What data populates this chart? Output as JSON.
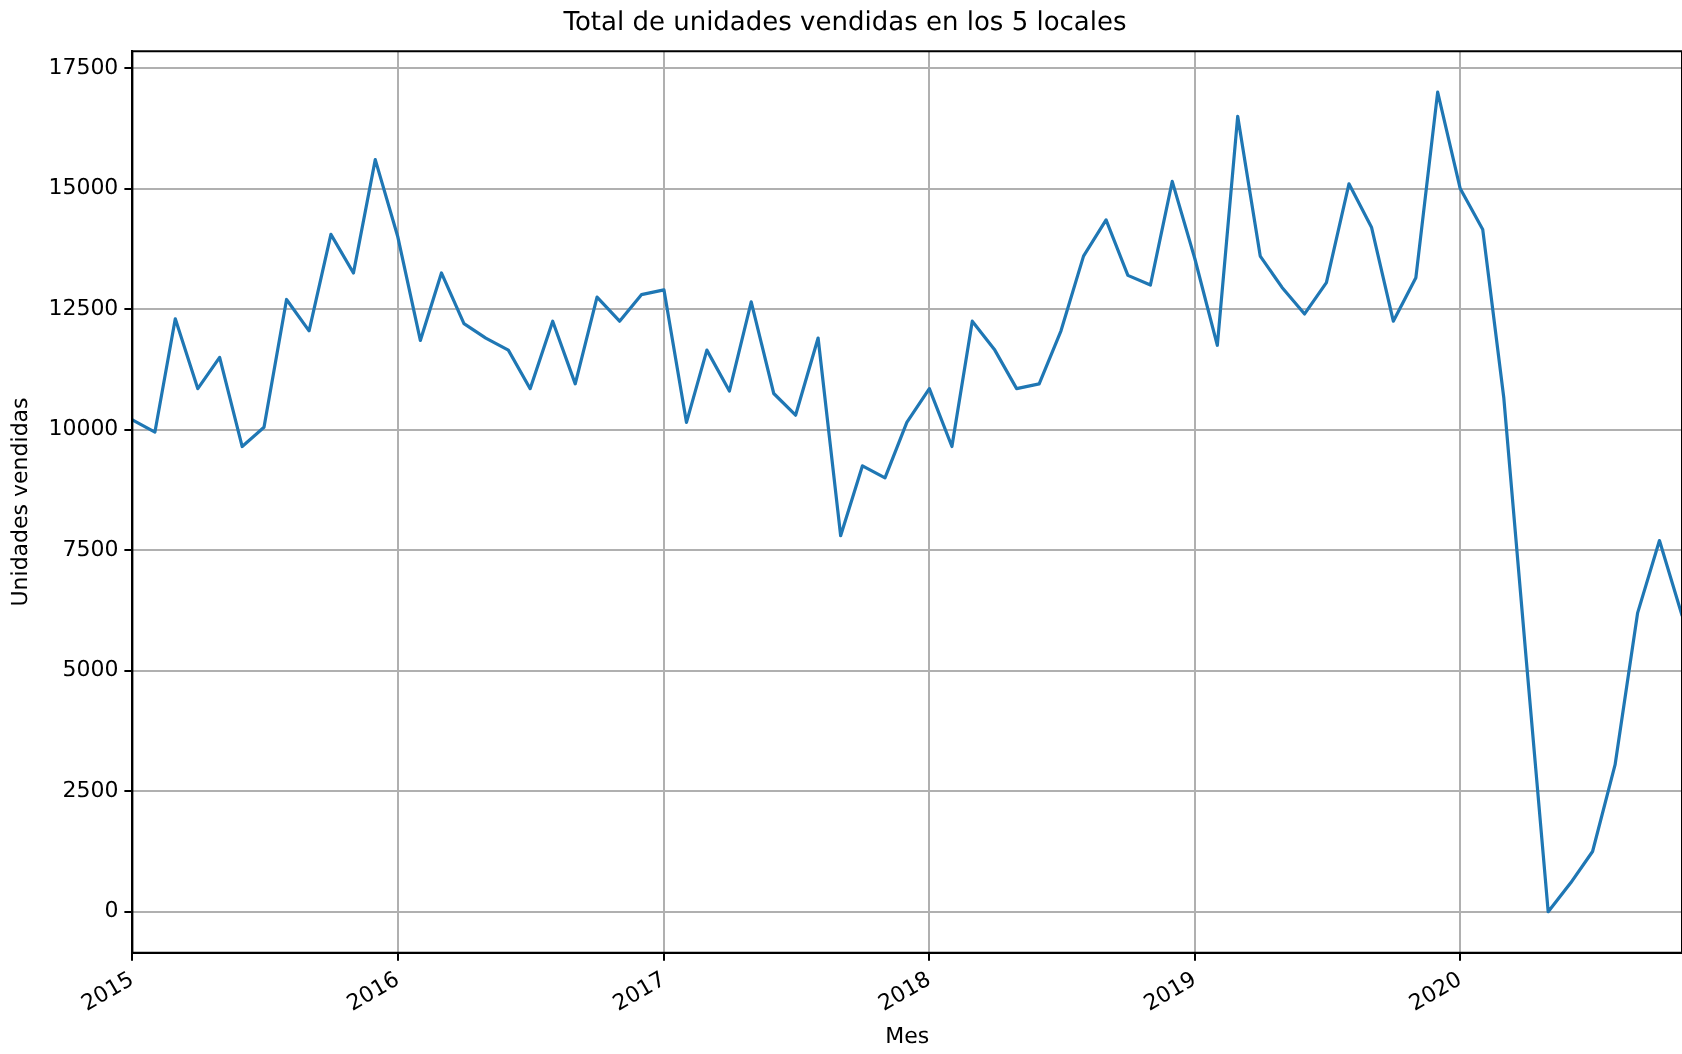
{
  "chart_data": {
    "type": "line",
    "title": "Total de unidades vendidas en los 5 locales",
    "xlabel": "Mes",
    "ylabel": "Unidades vendidas",
    "x": [
      "2015-01",
      "2015-02",
      "2015-03",
      "2015-04",
      "2015-05",
      "2015-06",
      "2015-07",
      "2015-08",
      "2015-09",
      "2015-10",
      "2015-11",
      "2015-12",
      "2016-01",
      "2016-02",
      "2016-03",
      "2016-04",
      "2016-05",
      "2016-06",
      "2016-07",
      "2016-08",
      "2016-09",
      "2016-10",
      "2016-11",
      "2016-12",
      "2017-01",
      "2017-02",
      "2017-03",
      "2017-04",
      "2017-05",
      "2017-06",
      "2017-07",
      "2017-08",
      "2017-09",
      "2017-10",
      "2017-11",
      "2017-12",
      "2018-01",
      "2018-02",
      "2018-03",
      "2018-04",
      "2018-05",
      "2018-06",
      "2018-07",
      "2018-08",
      "2018-09",
      "2018-10",
      "2018-11",
      "2018-12",
      "2019-01",
      "2019-02",
      "2019-03",
      "2019-04",
      "2019-05",
      "2019-06",
      "2019-07",
      "2019-08",
      "2019-09",
      "2019-10",
      "2019-11",
      "2019-12",
      "2020-01",
      "2020-02",
      "2020-03",
      "2020-04",
      "2020-05",
      "2020-06",
      "2020-07",
      "2020-08",
      "2020-09",
      "2020-10",
      "2020-11"
    ],
    "series": [
      {
        "color": "#1f77b4",
        "values": [
          10200,
          9950,
          12300,
          10850,
          11500,
          9650,
          10050,
          12700,
          12050,
          14050,
          13250,
          15600,
          14000,
          11850,
          13250,
          12200,
          11900,
          11650,
          10850,
          12250,
          10950,
          12750,
          12250,
          12800,
          12900,
          10150,
          11650,
          10800,
          12650,
          10750,
          10300,
          11900,
          7800,
          9250,
          9000,
          10150,
          10850,
          9650,
          12250,
          11650,
          10850,
          10950,
          12050,
          13600,
          14350,
          13200,
          13000,
          15150,
          13550,
          11750,
          16500,
          13600,
          12950,
          12400,
          13050,
          15100,
          14200,
          12250,
          13150,
          17000,
          15000,
          14150,
          10650,
          5200,
          0,
          600,
          1250,
          3050,
          6200,
          7700,
          6150
        ]
      }
    ],
    "xlim": [
      "2015-01",
      "2020-11"
    ],
    "xticks": [
      "2015",
      "2016",
      "2017",
      "2018",
      "2019",
      "2020"
    ],
    "ylim": [
      -850,
      17850
    ],
    "yticks": [
      0,
      2500,
      5000,
      7500,
      10000,
      12500,
      15000,
      17500
    ],
    "grid": true,
    "legend": false,
    "marker": "none",
    "line_style": "solid"
  }
}
